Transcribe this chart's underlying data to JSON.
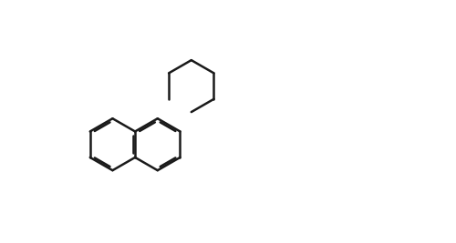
{
  "background_color": "#ffffff",
  "line_color": "#1a1a1a",
  "line_width": 1.8,
  "figsize": [
    5.0,
    2.67
  ],
  "dpi": 100
}
